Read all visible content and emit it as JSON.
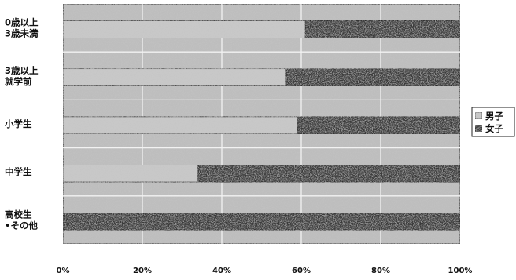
{
  "chart_data": {
    "type": "bar",
    "orientation": "horizontal",
    "stacked": "percent",
    "categories": [
      [
        "0歳以上",
        "3歳未満"
      ],
      [
        "3歳以上",
        "就学前"
      ],
      [
        "小学生"
      ],
      [
        "中学生"
      ],
      [
        "高校生",
        "•その他"
      ]
    ],
    "series": [
      {
        "name": "男子",
        "values": [
          61,
          56,
          59,
          34,
          0
        ]
      },
      {
        "name": "女子",
        "values": [
          39,
          44,
          41,
          66,
          100
        ]
      }
    ],
    "x_ticks": [
      "0%",
      "20%",
      "40%",
      "60%",
      "80%",
      "100%"
    ],
    "xlim": [
      0,
      100
    ],
    "grid": true,
    "legend_position": "right",
    "colors": {
      "男子": "#c9c9c9",
      "女子": "#3a3a3a",
      "background": "#bdbdbd"
    }
  }
}
